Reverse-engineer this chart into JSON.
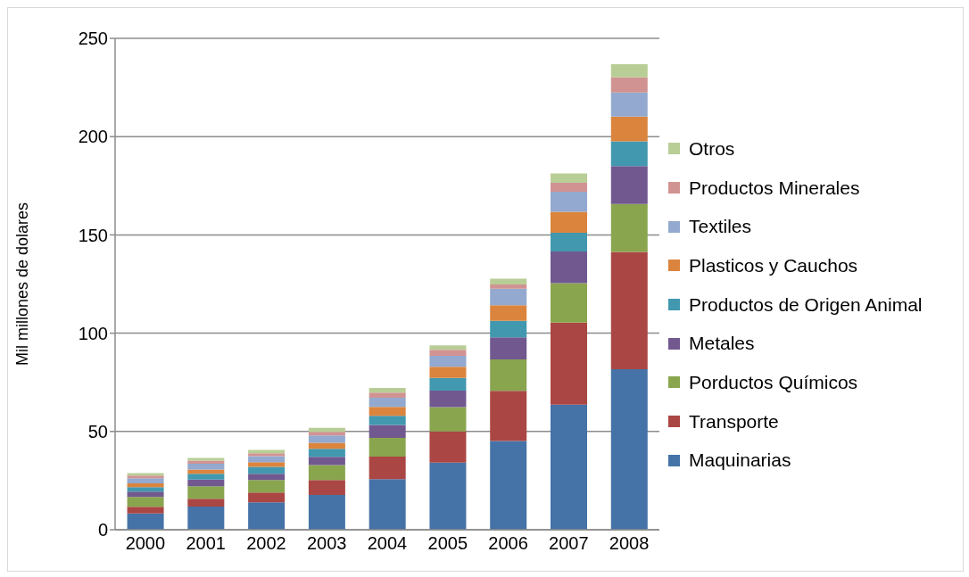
{
  "chart_data": {
    "type": "bar",
    "stacked": true,
    "ylabel": "Mil millones de dolares",
    "categories": [
      "2000",
      "2001",
      "2002",
      "2003",
      "2004",
      "2005",
      "2006",
      "2007",
      "2008"
    ],
    "series": [
      {
        "name": "Maquinarias",
        "color": "#4572a7",
        "values": [
          8.3,
          11.8,
          13.9,
          17.7,
          25.8,
          34.1,
          45.2,
          63.6,
          81.7
        ]
      },
      {
        "name": "Transporte",
        "color": "#aa4643",
        "values": [
          3.4,
          4.0,
          5.0,
          7.6,
          11.4,
          15.9,
          25.5,
          41.8,
          59.6
        ]
      },
      {
        "name": "Porductos Químicos",
        "color": "#89a54e",
        "values": [
          5.0,
          6.3,
          6.4,
          7.6,
          9.5,
          12.4,
          16.0,
          20.0,
          24.4
        ]
      },
      {
        "name": "Metales",
        "color": "#71588f",
        "values": [
          2.7,
          3.4,
          3.2,
          4.2,
          6.6,
          8.4,
          11.2,
          16.2,
          19.3
        ]
      },
      {
        "name": "Productos de Origen Animal",
        "color": "#4198af",
        "values": [
          2.3,
          3.0,
          3.5,
          4.1,
          4.7,
          6.4,
          8.4,
          9.5,
          12.6
        ]
      },
      {
        "name": "Plasticos y Cauchos",
        "color": "#db843d",
        "values": [
          1.9,
          2.1,
          2.4,
          3.0,
          4.5,
          5.7,
          7.9,
          10.6,
          12.6
        ]
      },
      {
        "name": "Textiles",
        "color": "#93a9cf",
        "values": [
          2.6,
          3.0,
          3.0,
          3.8,
          4.7,
          5.6,
          8.4,
          10.3,
          12.2
        ]
      },
      {
        "name": "Productos Minerales",
        "color": "#d19392",
        "values": [
          1.4,
          1.6,
          1.5,
          1.8,
          2.6,
          3.0,
          2.2,
          4.5,
          7.8
        ]
      },
      {
        "name": "Otros",
        "color": "#b9cd96",
        "values": [
          1.2,
          1.3,
          1.7,
          2.0,
          2.3,
          2.3,
          2.9,
          4.8,
          6.6
        ]
      }
    ],
    "ylim": [
      0,
      250
    ],
    "yticks": [
      0,
      50,
      100,
      150,
      200,
      250
    ],
    "grid": "y",
    "legend": "right"
  }
}
